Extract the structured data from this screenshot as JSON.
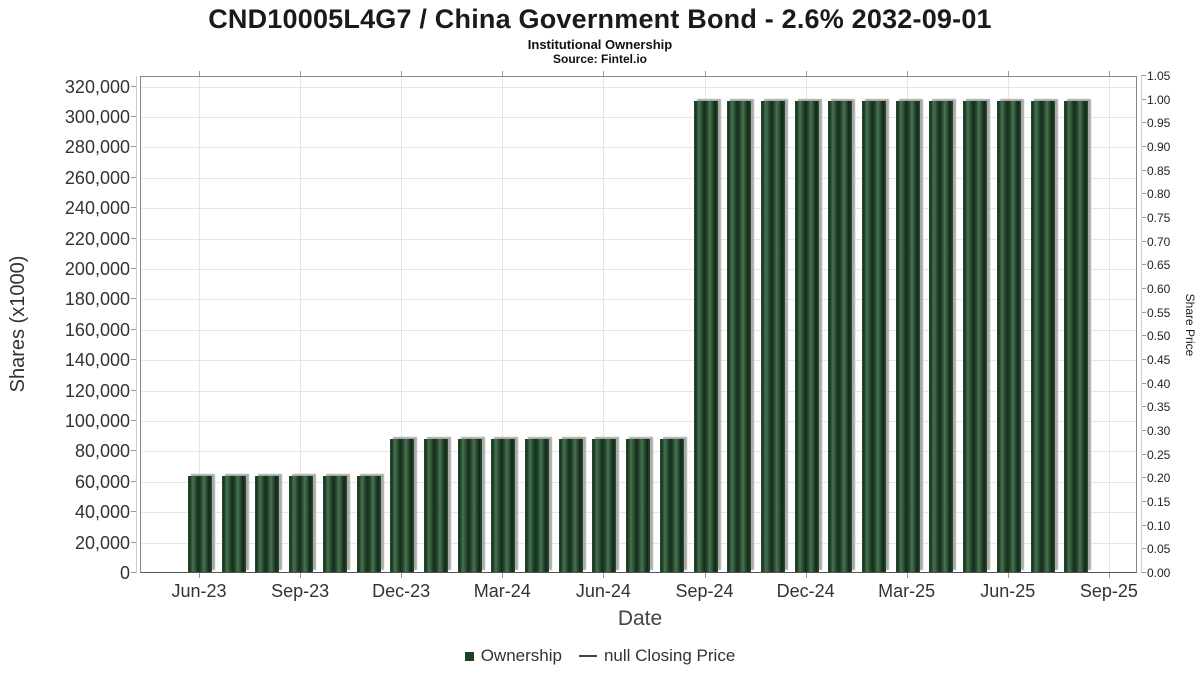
{
  "header": {
    "title": "CND10005L4G7 / China Government Bond - 2.6% 2032-09-01",
    "subtitle": "Institutional Ownership",
    "source": "Source: Fintel.io"
  },
  "axes": {
    "left": {
      "title": "Shares (x1000)",
      "tick_labels": [
        "0",
        "20,000",
        "40,000",
        "60,000",
        "80,000",
        "100,000",
        "120,000",
        "140,000",
        "160,000",
        "180,000",
        "200,000",
        "220,000",
        "240,000",
        "260,000",
        "280,000",
        "300,000",
        "320,000"
      ]
    },
    "right": {
      "title": "Share Price",
      "tick_labels": [
        "0.00",
        "0.05",
        "0.10",
        "0.15",
        "0.20",
        "0.25",
        "0.30",
        "0.35",
        "0.40",
        "0.45",
        "0.50",
        "0.55",
        "0.60",
        "0.65",
        "0.70",
        "0.75",
        "0.80",
        "0.85",
        "0.90",
        "0.95",
        "1.00",
        "1.05"
      ]
    },
    "x": {
      "title": "Date",
      "tick_labels": [
        "Jun-23",
        "Sep-23",
        "Dec-23",
        "Mar-24",
        "Jun-24",
        "Sep-24",
        "Dec-24",
        "Mar-25",
        "Jun-25",
        "Sep-25"
      ]
    }
  },
  "legend": {
    "items": [
      {
        "label": "Ownership",
        "marker": "square",
        "color": "#1d4126"
      },
      {
        "label": "null Closing Price",
        "marker": "line",
        "color": "#444444"
      }
    ]
  },
  "chart_data": {
    "type": "bar",
    "title": "CND10005L4G7 / China Government Bond - 2.6% 2032-09-01",
    "subtitle": "Institutional Ownership",
    "source": "Source: Fintel.io",
    "xlabel": "Date",
    "ylabel": "Shares (x1000)",
    "y2label": "Share Price",
    "ylim": [
      0,
      320000
    ],
    "y2lim": [
      0,
      1.05
    ],
    "grid": true,
    "legend_position": "bottom",
    "x": [
      "Jun-23",
      "Jul-23",
      "Aug-23",
      "Sep-23",
      "Oct-23",
      "Nov-23",
      "Dec-23",
      "Jan-24",
      "Feb-24",
      "Mar-24",
      "Apr-24",
      "May-24",
      "Jun-24",
      "Jul-24",
      "Aug-24",
      "Sep-24",
      "Oct-24",
      "Nov-24",
      "Dec-24",
      "Jan-25",
      "Feb-25",
      "Mar-25",
      "Apr-25",
      "May-25",
      "Jun-25",
      "Jul-25",
      "Aug-25"
    ],
    "series": [
      {
        "name": "Ownership",
        "axis": "left",
        "color": "#1d4126",
        "values": [
          63000,
          63000,
          63000,
          63000,
          63000,
          63000,
          87500,
          87500,
          87500,
          87500,
          87500,
          87500,
          87500,
          87500,
          87500,
          310000,
          310000,
          310000,
          310000,
          310000,
          310000,
          310000,
          310000,
          310000,
          310000,
          310000,
          310000
        ]
      },
      {
        "name": "null Closing Price",
        "axis": "right",
        "color": "#444444",
        "values": null
      }
    ]
  },
  "colors": {
    "bar_dark": "#16301d",
    "bar_light": "#47734f",
    "bar_shadow": "#a9a9a9",
    "gridline": "#e6e6e6",
    "plot_border": "#888888",
    "text": "#333333"
  }
}
